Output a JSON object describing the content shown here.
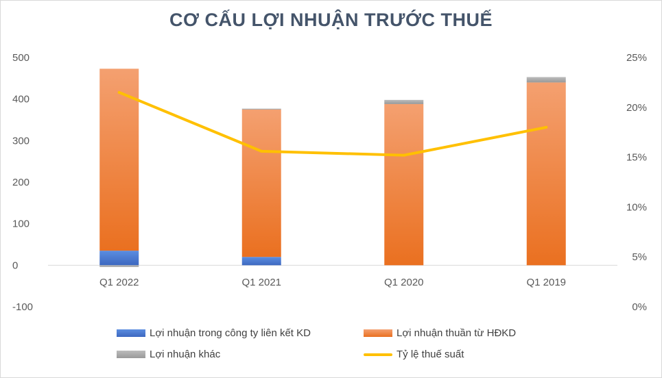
{
  "chart_data": {
    "type": "bar",
    "stacked": true,
    "title": "CƠ CẤU LỢI NHUẬN TRƯỚC THUẾ",
    "categories": [
      "Q1 2022",
      "Q1 2021",
      "Q1 2020",
      "Q1 2019"
    ],
    "y_left": {
      "ylim": [
        -100,
        500
      ],
      "ticks": [
        "-100",
        "0",
        "100",
        "200",
        "300",
        "400",
        "500"
      ]
    },
    "y_right": {
      "ylim": [
        0,
        25
      ],
      "ticks": [
        "0%",
        "5%",
        "10%",
        "15%",
        "20%",
        "25%"
      ]
    },
    "series": [
      {
        "name": "Lợi nhuận trong công ty liên kết KD",
        "type": "bar",
        "axis": "left",
        "color": "#4472c4",
        "values": [
          35,
          20,
          0,
          0
        ]
      },
      {
        "name": "Lợi nhuận thuần từ HĐKD",
        "type": "bar",
        "axis": "left",
        "color": "#ed7d31",
        "values": [
          438,
          355,
          388,
          440
        ]
      },
      {
        "name": "Lợi nhuận khác",
        "type": "bar",
        "axis": "left",
        "color": "#a5a5a5",
        "values": [
          -4,
          2,
          10,
          13
        ]
      },
      {
        "name": "Tỷ lệ thuế suất",
        "type": "line",
        "axis": "right",
        "color": "#ffc000",
        "values": [
          21.5,
          15.6,
          15.2,
          18.0
        ]
      }
    ],
    "grid": false,
    "legend_position": "bottom"
  }
}
